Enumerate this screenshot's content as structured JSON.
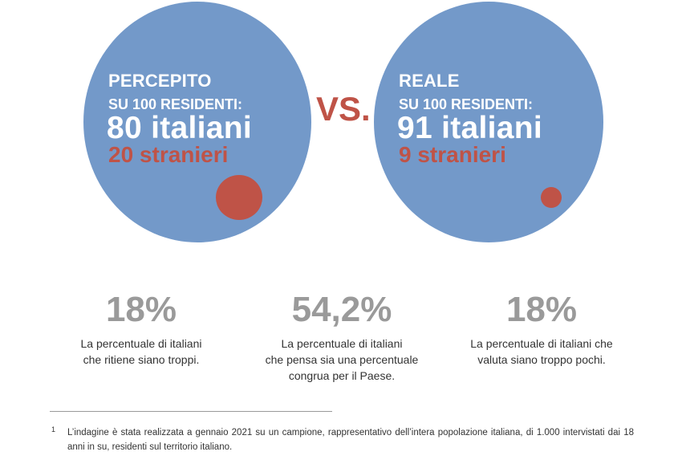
{
  "perceived": {
    "heading": "PERCEPITO",
    "subheading": "SU 100 RESIDENTI:",
    "italians": "80 italiani",
    "foreigners": "20 stranieri"
  },
  "vs_label": "VS.",
  "real": {
    "heading": "REALE",
    "subheading": "SU 100 RESIDENTI:",
    "italians": "91 italiani",
    "foreigners": "9 stranieri"
  },
  "stats": [
    {
      "value": "18%",
      "lines": [
        "La percentuale di italiani",
        "che ritiene siano troppi."
      ]
    },
    {
      "value": "54,2%",
      "lines": [
        "La percentuale di italiani",
        "che pensa sia una percentuale",
        "congrua per il Paese."
      ]
    },
    {
      "value": "18%",
      "lines": [
        "La percentuale di italiani che",
        "valuta siano troppo pochi."
      ]
    }
  ],
  "footnote": {
    "marker": "1",
    "text": "L’indagine è stata realizzata a gennaio 2021 su un campione, rappresentativo dell’intera popolazione italiana, di 1.000 intervistati dai 18 anni in su, residenti sul territorio italiano."
  },
  "colors": {
    "circle": "#7399c9",
    "accent_red": "#bf5347",
    "stat_grey": "#9a9a9a"
  }
}
